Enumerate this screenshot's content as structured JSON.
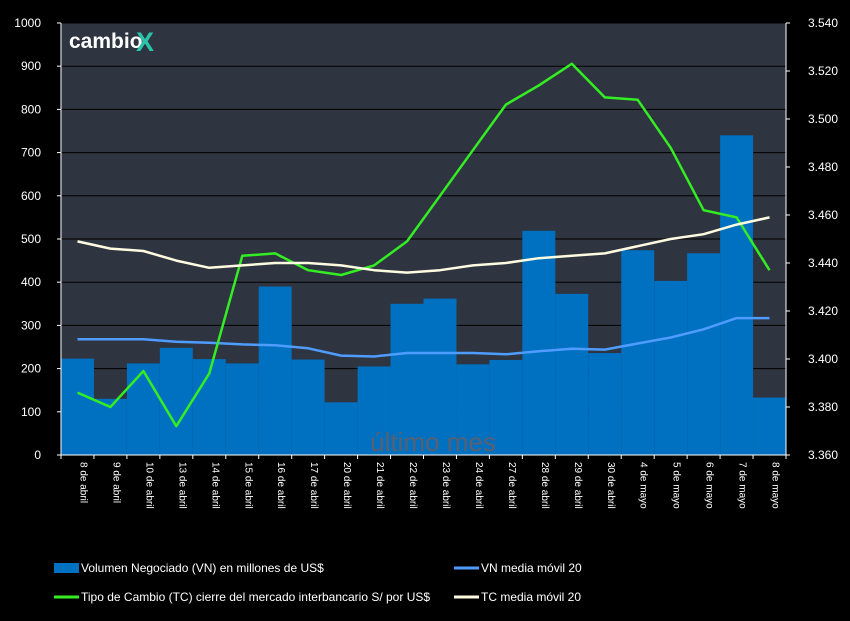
{
  "chart_data": {
    "type": "bar",
    "categories": [
      "8 de abril",
      "9 de abril",
      "10 de abril",
      "13 de abril",
      "14 de abril",
      "15 de abril",
      "16 de abril",
      "17 de abril",
      "20 de abril",
      "21 de abril",
      "22 de abril",
      "23 de abril",
      "24 de abril",
      "27 de abril",
      "28 de abril",
      "29 de abril",
      "30 de abril",
      "4 de mayo",
      "5 de mayo",
      "6 de mayo",
      "7 de mayo",
      "8 de mayo"
    ],
    "series": [
      {
        "name": "Volumen Negociado (VN) en millones de US$",
        "kind": "bar",
        "axis": "left",
        "color": "#0070c0",
        "values": [
          223,
          130,
          212,
          248,
          222,
          212,
          390,
          221,
          122,
          205,
          350,
          362,
          210,
          220,
          519,
          373,
          236,
          474,
          403,
          467,
          740,
          133
        ]
      },
      {
        "name": "VN media móvil 20",
        "kind": "line",
        "axis": "left",
        "color": "#4f9cff",
        "values": [
          268,
          268,
          268,
          262,
          260,
          256,
          254,
          247,
          230,
          228,
          236,
          236,
          236,
          233,
          240,
          246,
          244,
          258,
          272,
          291,
          317,
          317
        ]
      },
      {
        "name": "Tipo de Cambio (TC) cierre del mercado interbancario S/ por US$",
        "kind": "line",
        "axis": "right",
        "color": "#33ee22",
        "values": [
          3.386,
          3.38,
          3.395,
          3.372,
          3.394,
          3.443,
          3.444,
          3.437,
          3.435,
          3.439,
          3.449,
          3.468,
          3.487,
          3.506,
          3.514,
          3.523,
          3.509,
          3.508,
          3.488,
          3.462,
          3.459,
          3.437
        ]
      },
      {
        "name": "TC media móvil 20",
        "kind": "line",
        "axis": "right",
        "color": "#fffbe0",
        "values": [
          3.449,
          3.446,
          3.445,
          3.441,
          3.438,
          3.439,
          3.44,
          3.44,
          3.439,
          3.437,
          3.436,
          3.437,
          3.439,
          3.44,
          3.442,
          3.443,
          3.444,
          3.447,
          3.45,
          3.452,
          3.456,
          3.459
        ]
      }
    ],
    "y_left": {
      "min": 0,
      "max": 1000,
      "step": 100,
      "ticks": [
        "0",
        "100",
        "200",
        "300",
        "400",
        "500",
        "600",
        "700",
        "800",
        "900",
        "1000"
      ]
    },
    "y_right": {
      "min": 3.36,
      "max": 3.54,
      "step": 0.02,
      "ticks": [
        "3.360",
        "3.380",
        "3.400",
        "3.420",
        "3.440",
        "3.460",
        "3.480",
        "3.500",
        "3.520",
        "3.540"
      ]
    },
    "grid": true,
    "watermark": "último mes",
    "legend_placement": "bottom"
  },
  "brand": {
    "prefix": "cambio",
    "suffix": "X",
    "accent": "#29c4a9"
  },
  "colors": {
    "plot_bg": "#2f3441",
    "grid": "#000000",
    "page_bg": "#000000"
  }
}
